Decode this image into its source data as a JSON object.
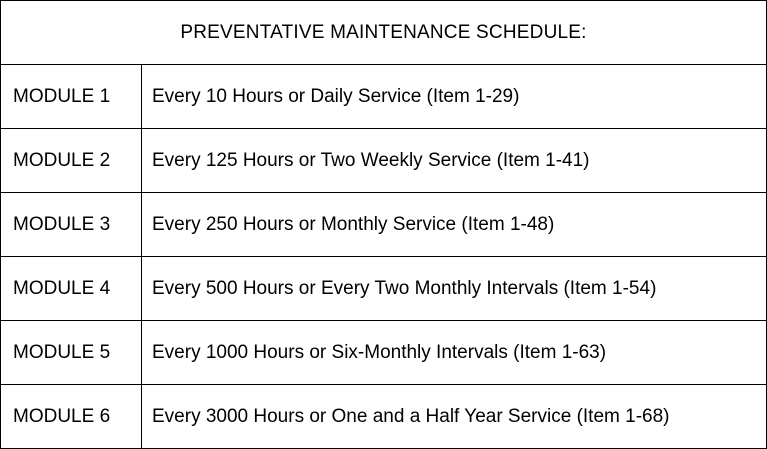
{
  "table": {
    "title": "PREVENTATIVE MAINTENANCE SCHEDULE:",
    "rows": [
      {
        "module": "MODULE 1",
        "description": "Every 10 Hours or Daily Service (Item 1-29)"
      },
      {
        "module": "MODULE 2",
        "description": "Every 125 Hours or Two Weekly Service (Item 1-41)"
      },
      {
        "module": "MODULE 3",
        "description": "Every 250 Hours or Monthly Service (Item 1-48)"
      },
      {
        "module": "MODULE 4",
        "description": "Every 500 Hours or Every Two Monthly Intervals (Item 1-54)"
      },
      {
        "module": "MODULE 5",
        "description": "Every 1000 Hours or Six-Monthly Intervals (Item 1-63)"
      },
      {
        "module": "MODULE 6",
        "description": "Every 3000 Hours or One and a Half Year Service (Item 1-68)"
      }
    ]
  }
}
